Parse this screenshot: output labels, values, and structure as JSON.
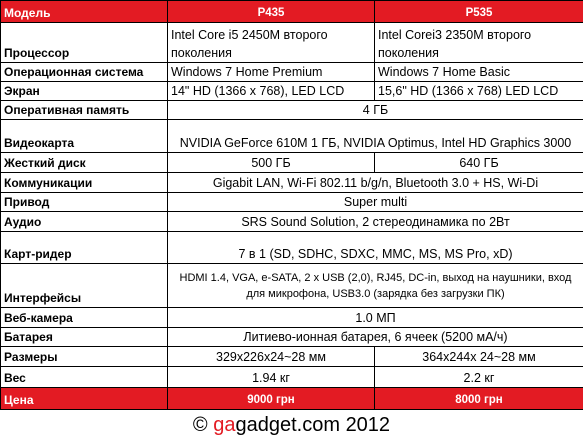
{
  "header": {
    "cells": [
      "Модель",
      "P435",
      "P535"
    ]
  },
  "table": {
    "rows": [
      {
        "label": "Процессор",
        "values": [
          "Intel Core i5 2450M второго поколения",
          "Intel Corei3 2350M второго поколения"
        ]
      },
      {
        "label": "Операционная система",
        "values": [
          "Windows 7 Home Premium",
          "Windows 7 Home Basic"
        ]
      },
      {
        "label": "Экран",
        "values": [
          "14\"  HD  (1366 x 768), LED LCD",
          "15,6\"  HD (1366 x 768) LED LCD"
        ]
      },
      {
        "label": "Оперативная память",
        "values": [
          "4 ГБ"
        ]
      },
      {
        "label": "Видеокарта",
        "values": [
          "NVIDIA GeForce 610M 1 ГБ, NVIDIA Optimus, Intel HD Graphics 3000"
        ]
      },
      {
        "label": "Жесткий диск",
        "values": [
          "500 ГБ",
          "640 ГБ"
        ]
      },
      {
        "label": "Коммуникации",
        "values": [
          "Gigabit LAN, Wi-Fi 802.11 b/g/n, Bluetooth 3.0 + HS, Wi-Di"
        ]
      },
      {
        "label": "Привод",
        "values": [
          "Super multi"
        ]
      },
      {
        "label": "Аудио",
        "values": [
          "SRS Sound Solution, 2 стереодинамика по  2Вт"
        ]
      },
      {
        "label": "Карт-ридер",
        "values": [
          "7 в 1 (SD, SDHC, SDXC, MMC, MS, MS Pro, xD)"
        ]
      },
      {
        "label": "Интерфейсы",
        "values": [
          "HDMI 1.4, VGA, e-SATA, 2  x USB (2,0),  RJ45, DC-in, выход на наушники, вход для микрофона, USB3.0  (зарядка без загрузки ПК)"
        ]
      },
      {
        "label": "Веб-камера",
        "values": [
          "1.0 МП"
        ]
      },
      {
        "label": "Батарея",
        "values": [
          "Литиево-ионная батарея, 6 ячеек (5200 мА/ч)"
        ]
      },
      {
        "label": "Размеры",
        "values": [
          "329x226x24~28 мм",
          "364x244x 24~28 мм"
        ]
      },
      {
        "label": "Вес",
        "values": [
          "1.94 кг",
          "2.2 кг"
        ]
      },
      {
        "label": "Цена",
        "values": [
          "9000 грн",
          "8000 грн"
        ]
      }
    ]
  },
  "footer": {
    "copyright": "©",
    "brand_red": "ga",
    "brand": "gadget.com",
    "year": "2012"
  }
}
